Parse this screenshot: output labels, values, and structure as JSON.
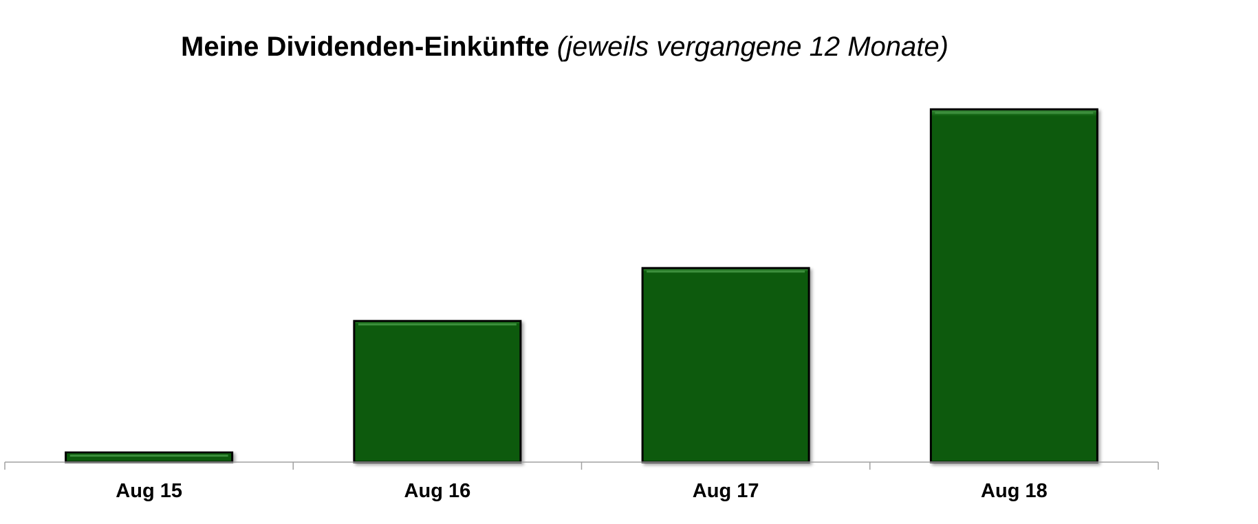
{
  "title": {
    "main": "Meine Dividenden-Einkünfte",
    "sub": "(jeweils vergangene 12 Monate)"
  },
  "colors": {
    "bar_fill": "#0a5a0a",
    "bar_border": "#000000",
    "bar_highlight": "#3d8f3d",
    "axis": "#a0a0a0"
  },
  "chart_data": {
    "type": "bar",
    "categories": [
      "Aug 15",
      "Aug 16",
      "Aug 17",
      "Aug 18"
    ],
    "values": [
      2.8,
      40,
      55,
      100
    ],
    "title": "Meine Dividenden-Einkünfte (jeweils vergangene 12 Monate)",
    "xlabel": "",
    "ylabel": "",
    "ylim": [
      0,
      100
    ],
    "grid": false,
    "legend": "none"
  }
}
